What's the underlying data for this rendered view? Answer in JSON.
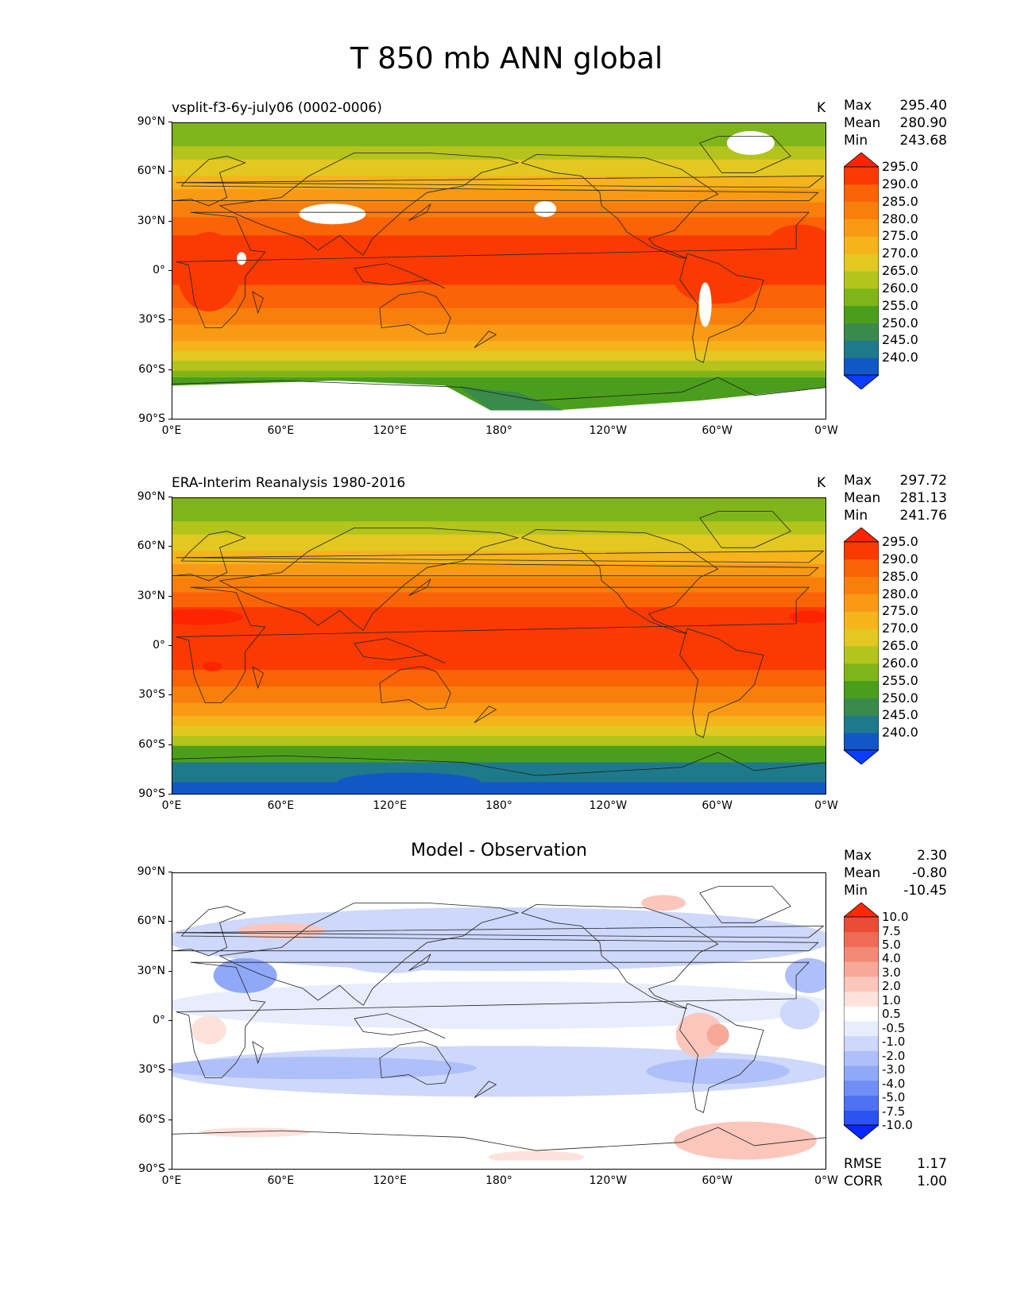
{
  "figure_title": "T 850 mb ANN global",
  "x_ticks": [
    "0°E",
    "60°E",
    "120°E",
    "180°",
    "120°W",
    "60°W",
    "0°W"
  ],
  "y_ticks": [
    "90°N",
    "60°N",
    "30°N",
    "0°",
    "30°S",
    "60°S",
    "90°S"
  ],
  "colors": {
    "abs_levels": [
      "#0c3cff",
      "#1257c6",
      "#1e7a8a",
      "#3a8a4c",
      "#4a9e1c",
      "#7fb51a",
      "#b3c41d",
      "#e2c821",
      "#f5b31c",
      "#f89a13",
      "#f97f0c",
      "#fa6306",
      "#fb3a03",
      "#ff2400"
    ],
    "diff_levels": [
      "#0628ff",
      "#2c52f0",
      "#4e72f2",
      "#6f8ff5",
      "#8fa8f7",
      "#aebff9",
      "#cdd8fb",
      "#e7edfd",
      "#ffffff",
      "#fde2dc",
      "#fbc6bb",
      "#f7a898",
      "#f38a78",
      "#ef6b56",
      "#ea4c35",
      "#ff2a00"
    ],
    "land_outline": "#222222",
    "missing": "#ffffff"
  },
  "panels": [
    {
      "title": "vsplit-f3-6y-july06 (0002-0006)",
      "units": "K",
      "stats": [
        {
          "label": "Max",
          "value": "295.40"
        },
        {
          "label": "Mean",
          "value": "280.90"
        },
        {
          "label": "Min",
          "value": "243.68"
        }
      ],
      "colorbar_labels": [
        "295.0",
        "290.0",
        "285.0",
        "280.0",
        "275.0",
        "270.0",
        "265.0",
        "260.0",
        "255.0",
        "250.0",
        "245.0",
        "240.0"
      ]
    },
    {
      "title": "ERA-Interim Reanalysis 1980-2016",
      "units": "K",
      "stats": [
        {
          "label": "Max",
          "value": "297.72"
        },
        {
          "label": "Mean",
          "value": "281.13"
        },
        {
          "label": "Min",
          "value": "241.76"
        }
      ],
      "colorbar_labels": [
        "295.0",
        "290.0",
        "285.0",
        "280.0",
        "275.0",
        "270.0",
        "265.0",
        "260.0",
        "255.0",
        "250.0",
        "245.0",
        "240.0"
      ]
    },
    {
      "title": "Model - Observation",
      "units": "",
      "stats": [
        {
          "label": "Max",
          "value": "2.30"
        },
        {
          "label": "Mean",
          "value": "-0.80"
        },
        {
          "label": "Min",
          "value": "-10.45"
        }
      ],
      "colorbar_labels": [
        "10.0",
        "7.5",
        "5.0",
        "4.0",
        "3.0",
        "2.0",
        "1.0",
        "0.5",
        "-0.5",
        "-1.0",
        "-2.0",
        "-3.0",
        "-4.0",
        "-5.0",
        "-7.5",
        "-10.0"
      ],
      "extra_stats": [
        {
          "label": "RMSE",
          "value": "1.17"
        },
        {
          "label": "CORR",
          "value": "1.00"
        }
      ]
    }
  ],
  "chart_data": [
    {
      "type": "heatmap",
      "title": "vsplit-f3-6y-july06 (0002-0006)",
      "units": "K",
      "xlim": [
        0,
        360
      ],
      "ylim": [
        -90,
        90
      ],
      "levels": [
        240,
        245,
        250,
        255,
        260,
        265,
        270,
        275,
        280,
        285,
        290,
        295
      ],
      "max": 295.4,
      "mean": 280.9,
      "min": 243.68
    },
    {
      "type": "heatmap",
      "title": "ERA-Interim Reanalysis 1980-2016",
      "units": "K",
      "xlim": [
        0,
        360
      ],
      "ylim": [
        -90,
        90
      ],
      "levels": [
        240,
        245,
        250,
        255,
        260,
        265,
        270,
        275,
        280,
        285,
        290,
        295
      ],
      "max": 297.72,
      "mean": 281.13,
      "min": 241.76
    },
    {
      "type": "heatmap",
      "title": "Model - Observation",
      "xlim": [
        0,
        360
      ],
      "ylim": [
        -90,
        90
      ],
      "levels": [
        -10.0,
        -7.5,
        -5.0,
        -4.0,
        -3.0,
        -2.0,
        -1.0,
        -0.5,
        0.5,
        1.0,
        2.0,
        3.0,
        4.0,
        5.0,
        7.5,
        10.0
      ],
      "max": 2.3,
      "mean": -0.8,
      "min": -10.45,
      "rmse": 1.17,
      "corr": 1.0
    }
  ]
}
